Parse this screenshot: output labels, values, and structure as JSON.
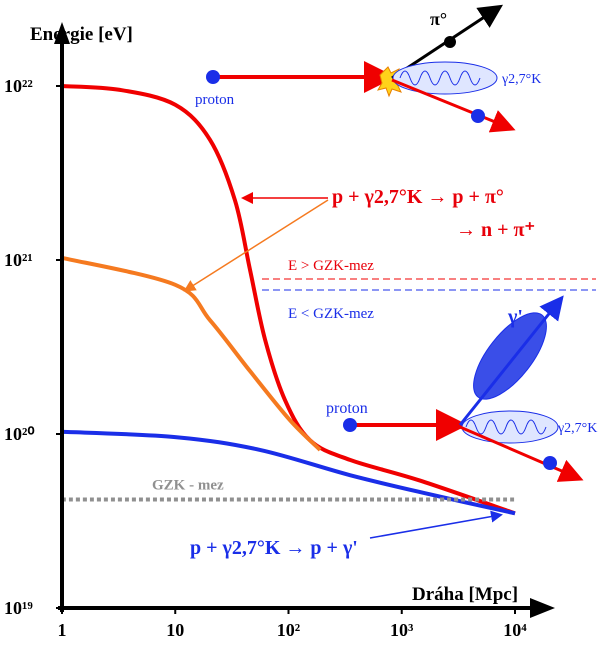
{
  "chart_data": {
    "type": "line",
    "log_x": true,
    "log_y": true,
    "x_label": "Dráha  [Mpc]",
    "y_label": "Energie [eV]",
    "xlim": [
      1,
      10000
    ],
    "ylim": [
      1e+19,
      1e+22
    ],
    "xticks": [
      1,
      10,
      {
        "value": 100,
        "label": "10²"
      },
      {
        "value": 1000,
        "label": "10³"
      },
      {
        "value": 10000,
        "label": "10⁴"
      }
    ],
    "yticks": [
      {
        "value": 1e+19,
        "label": "10¹⁹"
      },
      {
        "value": 1e+20,
        "label": "10²⁰"
      },
      {
        "value": 1e+21,
        "label": "10²¹"
      },
      {
        "value": 1e+22,
        "label": "10²²"
      }
    ],
    "series": [
      {
        "color": "#f00000",
        "x": [
          1,
          3.25,
          10,
          20.3,
          33.7,
          45.7,
          62,
          93,
          155,
          349,
          1449,
          10000
        ],
        "values": [
          1e+22,
          9.5e+21,
          7.8e+21,
          4.9e+21,
          2.2e+21,
          8.8e+20,
          3.5e+20,
          1.57e+20,
          9.2e+19,
          7.1e+19,
          5.4e+19,
          3.5e+19
        ]
      },
      {
        "color": "#f57a20",
        "x": [
          1,
          10,
          20.3,
          45.7,
          103,
          190
        ],
        "values": [
          1.03e+21,
          7.2e+20,
          4.5e+20,
          2.3e+20,
          1.2e+20,
          8.1e+19
        ]
      },
      {
        "color": "#1a2ee8",
        "x": [
          1,
          10,
          56,
          349,
          1775,
          10000
        ],
        "values": [
          1.03e+20,
          9.6e+19,
          8.1e+19,
          5.8e+19,
          4.5e+19,
          3.5e+19
        ]
      },
      {
        "name": "GZK - mez",
        "color": "#909090",
        "dashed": true,
        "x": [
          1,
          10000
        ],
        "values": [
          4.2e+19,
          4.2e+19
        ]
      }
    ],
    "annotations": [
      "proton",
      "π°",
      "γ2,7°K",
      "p +  γ2,7°K → p + π°",
      "→ n + π⁺",
      "E > GZK-mez",
      "E < GZK-mez",
      "proton",
      "γ'",
      "γ2,7°K",
      "p +  γ2,7°K → p + γ'"
    ]
  }
}
